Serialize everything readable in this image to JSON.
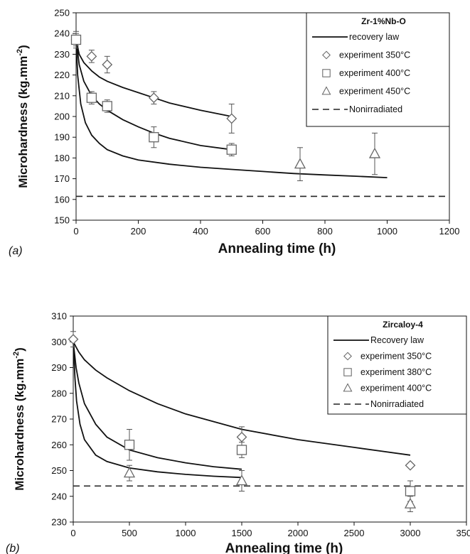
{
  "chart_data": [
    {
      "type": "line",
      "panel_label": "(a)",
      "xlabel": "Annealing time (h)",
      "ylabel": "Microhardness (kg.mm",
      "ylabel_sup": "-2",
      "ylabel_close": ")",
      "xlim": [
        0,
        1200
      ],
      "ylim": [
        150,
        250
      ],
      "x_ticks": [
        0,
        200,
        400,
        600,
        800,
        1000,
        1200
      ],
      "y_ticks": [
        150,
        160,
        170,
        180,
        190,
        200,
        210,
        220,
        230,
        240,
        250
      ],
      "grid": false,
      "legend": {
        "title": "Zr-1%Nb-O",
        "placement": "top-right",
        "entries": [
          "recovery law",
          "experiment 350°C",
          "experiment 400°C",
          "experiment 450°C",
          "Nonirradiated"
        ]
      },
      "curves": [
        {
          "name": "recovery law",
          "x": [
            0,
            10,
            25,
            50,
            75,
            100,
            150,
            200,
            250,
            300,
            400,
            500
          ],
          "y": [
            237,
            230,
            226,
            222,
            219,
            217,
            214,
            211.5,
            209,
            206.5,
            203,
            200
          ]
        },
        {
          "name": "recovery law",
          "x": [
            0,
            10,
            25,
            50,
            75,
            100,
            150,
            200,
            250,
            300,
            400,
            500
          ],
          "y": [
            237,
            225,
            217,
            210,
            206,
            203,
            198.5,
            195,
            192,
            189.5,
            186,
            184
          ]
        },
        {
          "name": "recovery law",
          "x": [
            0,
            5,
            15,
            30,
            50,
            75,
            100,
            150,
            200,
            300,
            400,
            500,
            600,
            700,
            800,
            900,
            1000
          ],
          "y": [
            237,
            220,
            206,
            197,
            191,
            187,
            184,
            181,
            179,
            177,
            175.5,
            174.5,
            173.5,
            172.5,
            171.8,
            171.2,
            170.5
          ]
        }
      ],
      "series": [
        {
          "name": "experiment 350°C",
          "marker": "diamond",
          "x": [
            0,
            50,
            100,
            250,
            500
          ],
          "y": [
            237,
            229,
            225,
            209,
            199
          ],
          "err": [
            3,
            3,
            4,
            3,
            7
          ]
        },
        {
          "name": "experiment 400°C",
          "marker": "square",
          "x": [
            0,
            50,
            100,
            250,
            500
          ],
          "y": [
            237,
            209,
            205,
            190,
            184
          ],
          "err": [
            4,
            3,
            3,
            5,
            3
          ]
        },
        {
          "name": "experiment 450°C",
          "marker": "triangle",
          "x": [
            720,
            960
          ],
          "y": [
            177,
            182
          ],
          "err": [
            8,
            10
          ]
        }
      ],
      "reference_line": {
        "name": "Nonirradiated",
        "y": 161.5
      }
    },
    {
      "type": "line",
      "panel_label": "(b)",
      "xlabel": "Annealing time (h)",
      "ylabel": "Microhardness (kg.mm",
      "ylabel_sup": "-2",
      "ylabel_close": ")",
      "xlim": [
        0,
        3500
      ],
      "ylim": [
        230,
        310
      ],
      "x_ticks": [
        0,
        500,
        1000,
        1500,
        2000,
        2500,
        3000,
        3500
      ],
      "y_ticks": [
        230,
        240,
        250,
        260,
        270,
        280,
        290,
        300,
        310
      ],
      "grid": false,
      "legend": {
        "title": "Zircaloy-4",
        "placement": "top-right",
        "entries": [
          "Recovery law",
          "experiment 350°C",
          "experiment 380°C",
          "experiment 400°C",
          "Nonirradiated"
        ]
      },
      "curves": [
        {
          "name": "Recovery law",
          "x": [
            0,
            50,
            100,
            200,
            300,
            500,
            750,
            1000,
            1250,
            1500,
            2000,
            2500,
            3000
          ],
          "y": [
            300,
            296,
            293,
            289,
            286,
            281,
            276,
            272,
            269,
            266,
            262,
            259,
            256
          ]
        },
        {
          "name": "Recovery law",
          "x": [
            0,
            25,
            50,
            100,
            200,
            300,
            500,
            750,
            1000,
            1250,
            1500
          ],
          "y": [
            300,
            290,
            284,
            276,
            268,
            263,
            258,
            255,
            253,
            251.5,
            250.5
          ]
        },
        {
          "name": "Recovery law",
          "x": [
            0,
            15,
            30,
            60,
            100,
            200,
            300,
            500,
            750,
            1000,
            1250,
            1500
          ],
          "y": [
            300,
            286,
            277,
            268,
            262,
            256,
            253.5,
            251,
            249.5,
            248.5,
            247.8,
            247.3
          ]
        }
      ],
      "series": [
        {
          "name": "experiment 350°C",
          "marker": "diamond",
          "x": [
            0,
            1500,
            3000
          ],
          "y": [
            301,
            263,
            252
          ],
          "err": [
            3,
            4,
            0
          ]
        },
        {
          "name": "experiment 380°C",
          "marker": "square",
          "x": [
            500,
            1500,
            3000
          ],
          "y": [
            260,
            258,
            242
          ],
          "err": [
            6,
            3,
            4
          ]
        },
        {
          "name": "experiment 400°C",
          "marker": "triangle",
          "x": [
            500,
            1500,
            3000
          ],
          "y": [
            249,
            246,
            237
          ],
          "err": [
            3,
            4,
            3
          ]
        }
      ],
      "reference_line": {
        "name": "Nonirradiated",
        "y": 244
      }
    }
  ]
}
